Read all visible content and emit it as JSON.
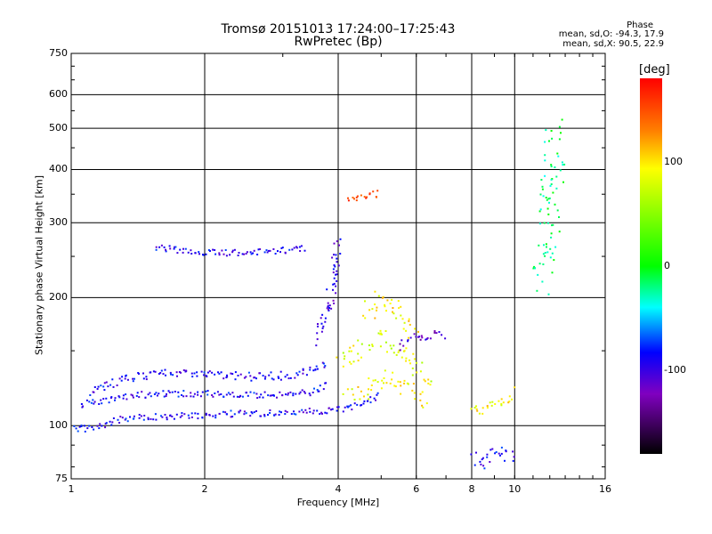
{
  "chart_data": {
    "type": "scatter",
    "title": "Tromsø 20151013 17:24:00–17:25:43",
    "subtitle": "RwPretec (Bp)",
    "xlabel": "Frequency [MHz]",
    "ylabel": "Stationary phase Virtual Height [km]",
    "x_scale": "log",
    "y_scale": "log",
    "xlim": [
      1,
      16
    ],
    "ylim": [
      75,
      750
    ],
    "x_ticks": [
      1,
      2,
      4,
      6,
      8,
      10,
      16
    ],
    "x_tick_labels": [
      "1",
      "2",
      "4",
      "6",
      "8",
      "10",
      "16"
    ],
    "y_ticks": [
      75,
      100,
      200,
      300,
      400,
      500,
      600,
      750
    ],
    "y_tick_labels": [
      "75",
      "100",
      "200",
      "300",
      "400",
      "500",
      "600",
      "750"
    ],
    "grid": true,
    "colorbar": {
      "label": "[deg]",
      "range": [
        -180,
        180
      ],
      "ticks": [
        100,
        0,
        -100
      ],
      "tick_labels": [
        "100",
        "0",
        "-100"
      ]
    },
    "annotations": {
      "heading": "Phase",
      "o_mode": "mean, sd,O: -94.3, 17.9",
      "x_mode": "mean, sd,X:  90.5, 22.9"
    },
    "series": [
      {
        "traces": [
          {
            "x": [
              1.0,
              1.15,
              1.3,
              1.6,
              2.0,
              2.5,
              3.0,
              3.5,
              4.0,
              4.5,
              5.0
            ],
            "y": [
              98,
              99,
              104,
              105,
              106,
              107,
              107,
              108,
              109,
              112,
              118
            ],
            "phase": -100,
            "spread": 0.015
          },
          {
            "x": [
              1.05,
              1.2,
              1.4,
              1.7,
              2.0,
              2.5,
              3.0,
              3.5,
              3.8
            ],
            "y": [
              112,
              115,
              118,
              119,
              119,
              118,
              118,
              120,
              125
            ],
            "phase": -100,
            "spread": 0.015
          },
          {
            "x": [
              1.1,
              1.3,
              1.5,
              1.8,
              2.2,
              2.6,
              3.0,
              3.4,
              3.8
            ],
            "y": [
              120,
              128,
              132,
              133,
              132,
              130,
              131,
              133,
              140
            ],
            "phase": -100,
            "spread": 0.02
          },
          {
            "x": [
              3.6,
              3.8,
              3.95,
              4.0
            ],
            "y": [
              160,
              190,
              230,
              270
            ],
            "phase": -110,
            "spread": 0.04
          },
          {
            "x": [
              1.55,
              1.8,
              2.0,
              2.4,
              3.0,
              3.4
            ],
            "y": [
              262,
              258,
              255,
              255,
              258,
              262
            ],
            "phase": -100,
            "spread": 0.015
          },
          {
            "x": [
              4.0,
              4.5,
              5.0,
              5.5,
              6.0,
              6.5
            ],
            "y": [
              140,
              150,
              160,
              150,
              138,
              128
            ],
            "phase": 80,
            "spread": 0.05
          },
          {
            "x": [
              4.2,
              4.6,
              5.0,
              5.5,
              6.0,
              6.3
            ],
            "y": [
              118,
              120,
              130,
              125,
              118,
              112
            ],
            "phase": 90,
            "spread": 0.04
          },
          {
            "x": [
              4.6,
              5.0,
              5.5,
              6.0
            ],
            "y": [
              185,
              200,
              180,
              165
            ],
            "phase": 95,
            "spread": 0.05
          },
          {
            "x": [
              5.5,
              6.0,
              6.5,
              7.0
            ],
            "y": [
              155,
              160,
              162,
              160
            ],
            "phase": -120,
            "spread": 0.03
          },
          {
            "x": [
              8.0,
              8.5,
              9.0,
              9.5,
              10.0
            ],
            "y": [
              108,
              110,
              112,
              115,
              120
            ],
            "phase": 95,
            "spread": 0.03
          },
          {
            "x": [
              8.0,
              8.5,
              9.0,
              10.0
            ],
            "y": [
              84,
              82,
              88,
              85
            ],
            "phase": -100,
            "spread": 0.04
          },
          {
            "x": [
              4.2,
              4.5,
              5.0
            ],
            "y": [
              345,
              345,
              350
            ],
            "phase": 150,
            "spread": 0.02
          },
          {
            "x": [
              11.5,
              12.0,
              12.3
            ],
            "y": [
              220,
              320,
              500
            ],
            "phase": -20,
            "spread": 0.1
          }
        ]
      }
    ]
  }
}
